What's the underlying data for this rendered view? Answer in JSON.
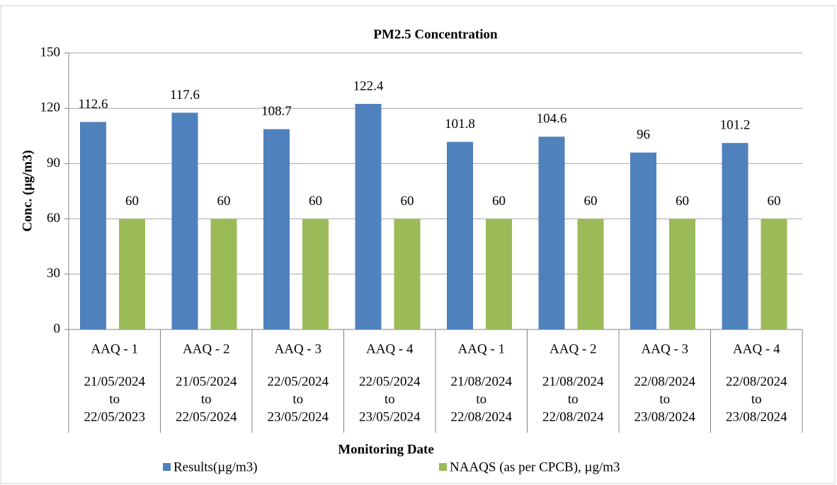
{
  "chart_data": {
    "type": "bar",
    "title": "PM2.5 Concentration",
    "y_label": "Conc. (µg/m3)",
    "x_label": "Monitoring Date",
    "categories": [
      "AAQ - 1",
      "AAQ - 2",
      "AAQ - 3",
      "AAQ - 4",
      "AAQ - 1",
      "AAQ - 2",
      "AAQ - 3",
      "AAQ - 4"
    ],
    "periods": [
      [
        "21/05/2024",
        "to",
        "22/05/2023"
      ],
      [
        "21/05/2024",
        "to",
        "22/05/2024"
      ],
      [
        "22/05/2024",
        "to",
        "23/05/2024"
      ],
      [
        "22/05/2024",
        "to",
        "23/05/2024"
      ],
      [
        "21/08/2024",
        "to",
        "22/08/2024"
      ],
      [
        "21/08/2024",
        "to",
        "22/08/2024"
      ],
      [
        "22/08/2024",
        "to",
        "23/08/2024"
      ],
      [
        "22/08/2024",
        "to",
        "23/08/2024"
      ]
    ],
    "series": [
      {
        "name": "Results(µg/m3)",
        "color": "#4f81bd",
        "values": [
          112.6,
          117.6,
          108.7,
          122.4,
          101.8,
          104.6,
          96,
          101.2
        ]
      },
      {
        "name": "NAAQS (as per CPCB), µg/m3",
        "color": "#9bbb59",
        "values": [
          60,
          60,
          60,
          60,
          60,
          60,
          60,
          60
        ]
      }
    ],
    "ylim": [
      0,
      150
    ],
    "yticks": [
      0,
      30,
      60,
      90,
      120,
      150
    ],
    "grid": true,
    "legend": "bottom"
  }
}
